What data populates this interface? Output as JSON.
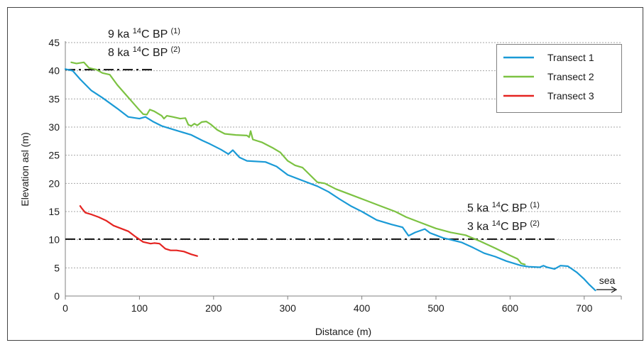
{
  "chart_data": {
    "type": "line",
    "xlabel": "Distance (m)",
    "ylabel": "Elevation asl (m)",
    "xlim": [
      0,
      750
    ],
    "ylim": [
      0,
      45
    ],
    "x_ticks": [
      0,
      100,
      200,
      300,
      400,
      500,
      600,
      700
    ],
    "y_ticks": [
      0,
      5,
      10,
      15,
      20,
      25,
      30,
      35,
      40,
      45
    ],
    "grid": "horizontal dotted",
    "legend": "top-right",
    "series": [
      {
        "name": "Transect 1",
        "color": "#1a9ad6",
        "points": [
          [
            0,
            40.3
          ],
          [
            10,
            40
          ],
          [
            20,
            38.5
          ],
          [
            35,
            36.5
          ],
          [
            50,
            35.2
          ],
          [
            70,
            33.3
          ],
          [
            85,
            31.8
          ],
          [
            95,
            31.6
          ],
          [
            100,
            31.5
          ],
          [
            108,
            31.8
          ],
          [
            118,
            31
          ],
          [
            130,
            30.2
          ],
          [
            150,
            29.4
          ],
          [
            170,
            28.6
          ],
          [
            185,
            27.6
          ],
          [
            195,
            27
          ],
          [
            210,
            26
          ],
          [
            220,
            25.2
          ],
          [
            226,
            25.9
          ],
          [
            235,
            24.6
          ],
          [
            245,
            24
          ],
          [
            270,
            23.8
          ],
          [
            285,
            23
          ],
          [
            300,
            21.5
          ],
          [
            320,
            20.5
          ],
          [
            340,
            19.5
          ],
          [
            355,
            18.5
          ],
          [
            370,
            17.2
          ],
          [
            385,
            16
          ],
          [
            400,
            15
          ],
          [
            420,
            13.5
          ],
          [
            440,
            12.7
          ],
          [
            455,
            12.2
          ],
          [
            463,
            10.7
          ],
          [
            472,
            11.3
          ],
          [
            485,
            11.9
          ],
          [
            492,
            11.2
          ],
          [
            500,
            10.8
          ],
          [
            510,
            10.3
          ],
          [
            520,
            10
          ],
          [
            535,
            9.5
          ],
          [
            550,
            8.6
          ],
          [
            565,
            7.6
          ],
          [
            580,
            7
          ],
          [
            595,
            6.2
          ],
          [
            615,
            5.4
          ],
          [
            625,
            5.2
          ],
          [
            640,
            5.1
          ],
          [
            645,
            5.4
          ],
          [
            650,
            5.1
          ],
          [
            660,
            4.8
          ],
          [
            668,
            5.4
          ],
          [
            678,
            5.3
          ],
          [
            690,
            4.2
          ],
          [
            700,
            3
          ],
          [
            707,
            2
          ],
          [
            715,
            1
          ]
        ]
      },
      {
        "name": "Transect 2",
        "color": "#7cc242",
        "points": [
          [
            8,
            41.5
          ],
          [
            15,
            41.3
          ],
          [
            25,
            41.5
          ],
          [
            32,
            40.5
          ],
          [
            42,
            40.2
          ],
          [
            50,
            39.6
          ],
          [
            60,
            39.3
          ],
          [
            70,
            37.5
          ],
          [
            80,
            36
          ],
          [
            90,
            34.5
          ],
          [
            98,
            33.3
          ],
          [
            105,
            32.3
          ],
          [
            110,
            32.2
          ],
          [
            114,
            33.1
          ],
          [
            120,
            32.8
          ],
          [
            130,
            32
          ],
          [
            133,
            31.5
          ],
          [
            137,
            32
          ],
          [
            145,
            31.8
          ],
          [
            155,
            31.5
          ],
          [
            162,
            31.6
          ],
          [
            166,
            30.4
          ],
          [
            170,
            30.2
          ],
          [
            174,
            30.6
          ],
          [
            178,
            30.3
          ],
          [
            184,
            30.9
          ],
          [
            190,
            31
          ],
          [
            196,
            30.5
          ],
          [
            205,
            29.5
          ],
          [
            215,
            28.8
          ],
          [
            230,
            28.6
          ],
          [
            245,
            28.5
          ],
          [
            248,
            28.2
          ],
          [
            250,
            29.3
          ],
          [
            253,
            27.8
          ],
          [
            265,
            27.3
          ],
          [
            280,
            26.3
          ],
          [
            290,
            25.5
          ],
          [
            300,
            24
          ],
          [
            310,
            23.2
          ],
          [
            320,
            22.8
          ],
          [
            330,
            21.5
          ],
          [
            340,
            20.2
          ],
          [
            350,
            20
          ],
          [
            365,
            19
          ],
          [
            385,
            18
          ],
          [
            405,
            17
          ],
          [
            425,
            16
          ],
          [
            445,
            15
          ],
          [
            460,
            14
          ],
          [
            480,
            13
          ],
          [
            500,
            12
          ],
          [
            520,
            11.3
          ],
          [
            540,
            10.8
          ],
          [
            560,
            9.7
          ],
          [
            580,
            8.5
          ],
          [
            600,
            7.2
          ],
          [
            610,
            6.6
          ],
          [
            615,
            5.8
          ],
          [
            620,
            5.6
          ]
        ]
      },
      {
        "name": "Transect 3",
        "color": "#e52421",
        "points": [
          [
            20,
            16
          ],
          [
            22,
            15.6
          ],
          [
            27,
            14.8
          ],
          [
            35,
            14.5
          ],
          [
            45,
            14
          ],
          [
            55,
            13.4
          ],
          [
            65,
            12.5
          ],
          [
            75,
            12
          ],
          [
            85,
            11.5
          ],
          [
            95,
            10.5
          ],
          [
            105,
            9.6
          ],
          [
            115,
            9.3
          ],
          [
            120,
            9.4
          ],
          [
            127,
            9.3
          ],
          [
            135,
            8.4
          ],
          [
            142,
            8.1
          ],
          [
            150,
            8.1
          ],
          [
            160,
            7.9
          ],
          [
            170,
            7.4
          ],
          [
            178,
            7.1
          ]
        ]
      }
    ],
    "reference_lines": [
      {
        "y": 40.2,
        "x_start": 0,
        "x_end": 120
      },
      {
        "y": 10.1,
        "x_start": 0,
        "x_end": 665
      }
    ],
    "annotations": [
      {
        "text": "9 ka ",
        "sup": "14",
        "text2": "C BP ",
        "sup2": "(1)"
      },
      {
        "text": "8 ka ",
        "sup": "14",
        "text2": "C BP ",
        "sup2": "(2)"
      },
      {
        "text": "5 ka ",
        "sup": "14",
        "text2": "C BP ",
        "sup2": "(1)"
      },
      {
        "text": "3 ka ",
        "sup": "14",
        "text2": "C BP ",
        "sup2": "(2)"
      }
    ],
    "sea_label": "sea"
  }
}
